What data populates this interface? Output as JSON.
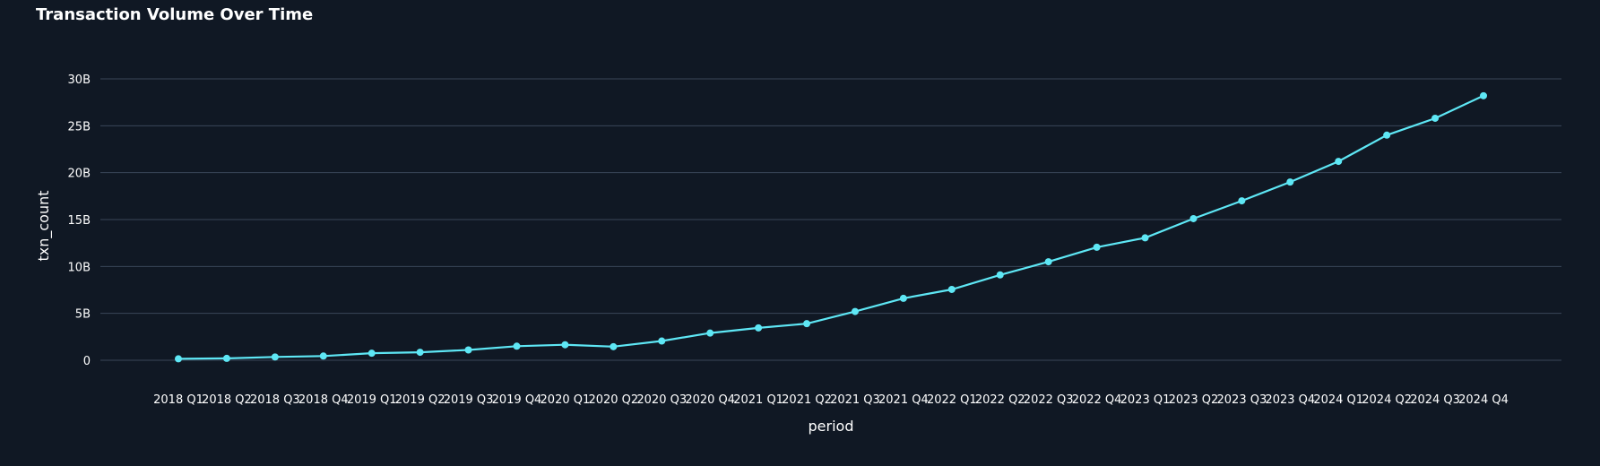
{
  "chart_data": {
    "type": "line",
    "title": "Transaction Volume Over Time",
    "xlabel": "period",
    "ylabel": "txn_count",
    "categories": [
      "2018 Q1",
      "2018 Q2",
      "2018 Q3",
      "2018 Q4",
      "2019 Q1",
      "2019 Q2",
      "2019 Q3",
      "2019 Q4",
      "2020 Q1",
      "2020 Q2",
      "2020 Q3",
      "2020 Q4",
      "2021 Q1",
      "2021 Q2",
      "2021 Q3",
      "2021 Q4",
      "2022 Q1",
      "2022 Q2",
      "2022 Q3",
      "2022 Q4",
      "2023 Q1",
      "2023 Q2",
      "2023 Q3",
      "2023 Q4",
      "2024 Q1",
      "2024 Q2",
      "2024 Q3",
      "2024 Q4"
    ],
    "series": [
      {
        "values": [
          0.15,
          0.2,
          0.35,
          0.45,
          0.75,
          0.85,
          1.1,
          1.5,
          1.65,
          1.45,
          2.05,
          2.9,
          3.45,
          3.9,
          5.2,
          6.6,
          7.55,
          9.1,
          10.5,
          12.05,
          13.05,
          15.1,
          17.0,
          19.0,
          21.2,
          24.0,
          25.8,
          28.2
        ]
      }
    ],
    "ylim": [
      0,
      30
    ],
    "yticks": [
      {
        "value": 0,
        "label": "0"
      },
      {
        "value": 5,
        "label": "5B"
      },
      {
        "value": 10,
        "label": "10B"
      },
      {
        "value": 15,
        "label": "15B"
      },
      {
        "value": 20,
        "label": "20B"
      },
      {
        "value": 25,
        "label": "25B"
      },
      {
        "value": 30,
        "label": "30B"
      }
    ],
    "grid": true,
    "colors": {
      "background": "#101824",
      "grid": "#3a4658",
      "line": "#5ee7f5",
      "text": "#ffffff"
    }
  }
}
